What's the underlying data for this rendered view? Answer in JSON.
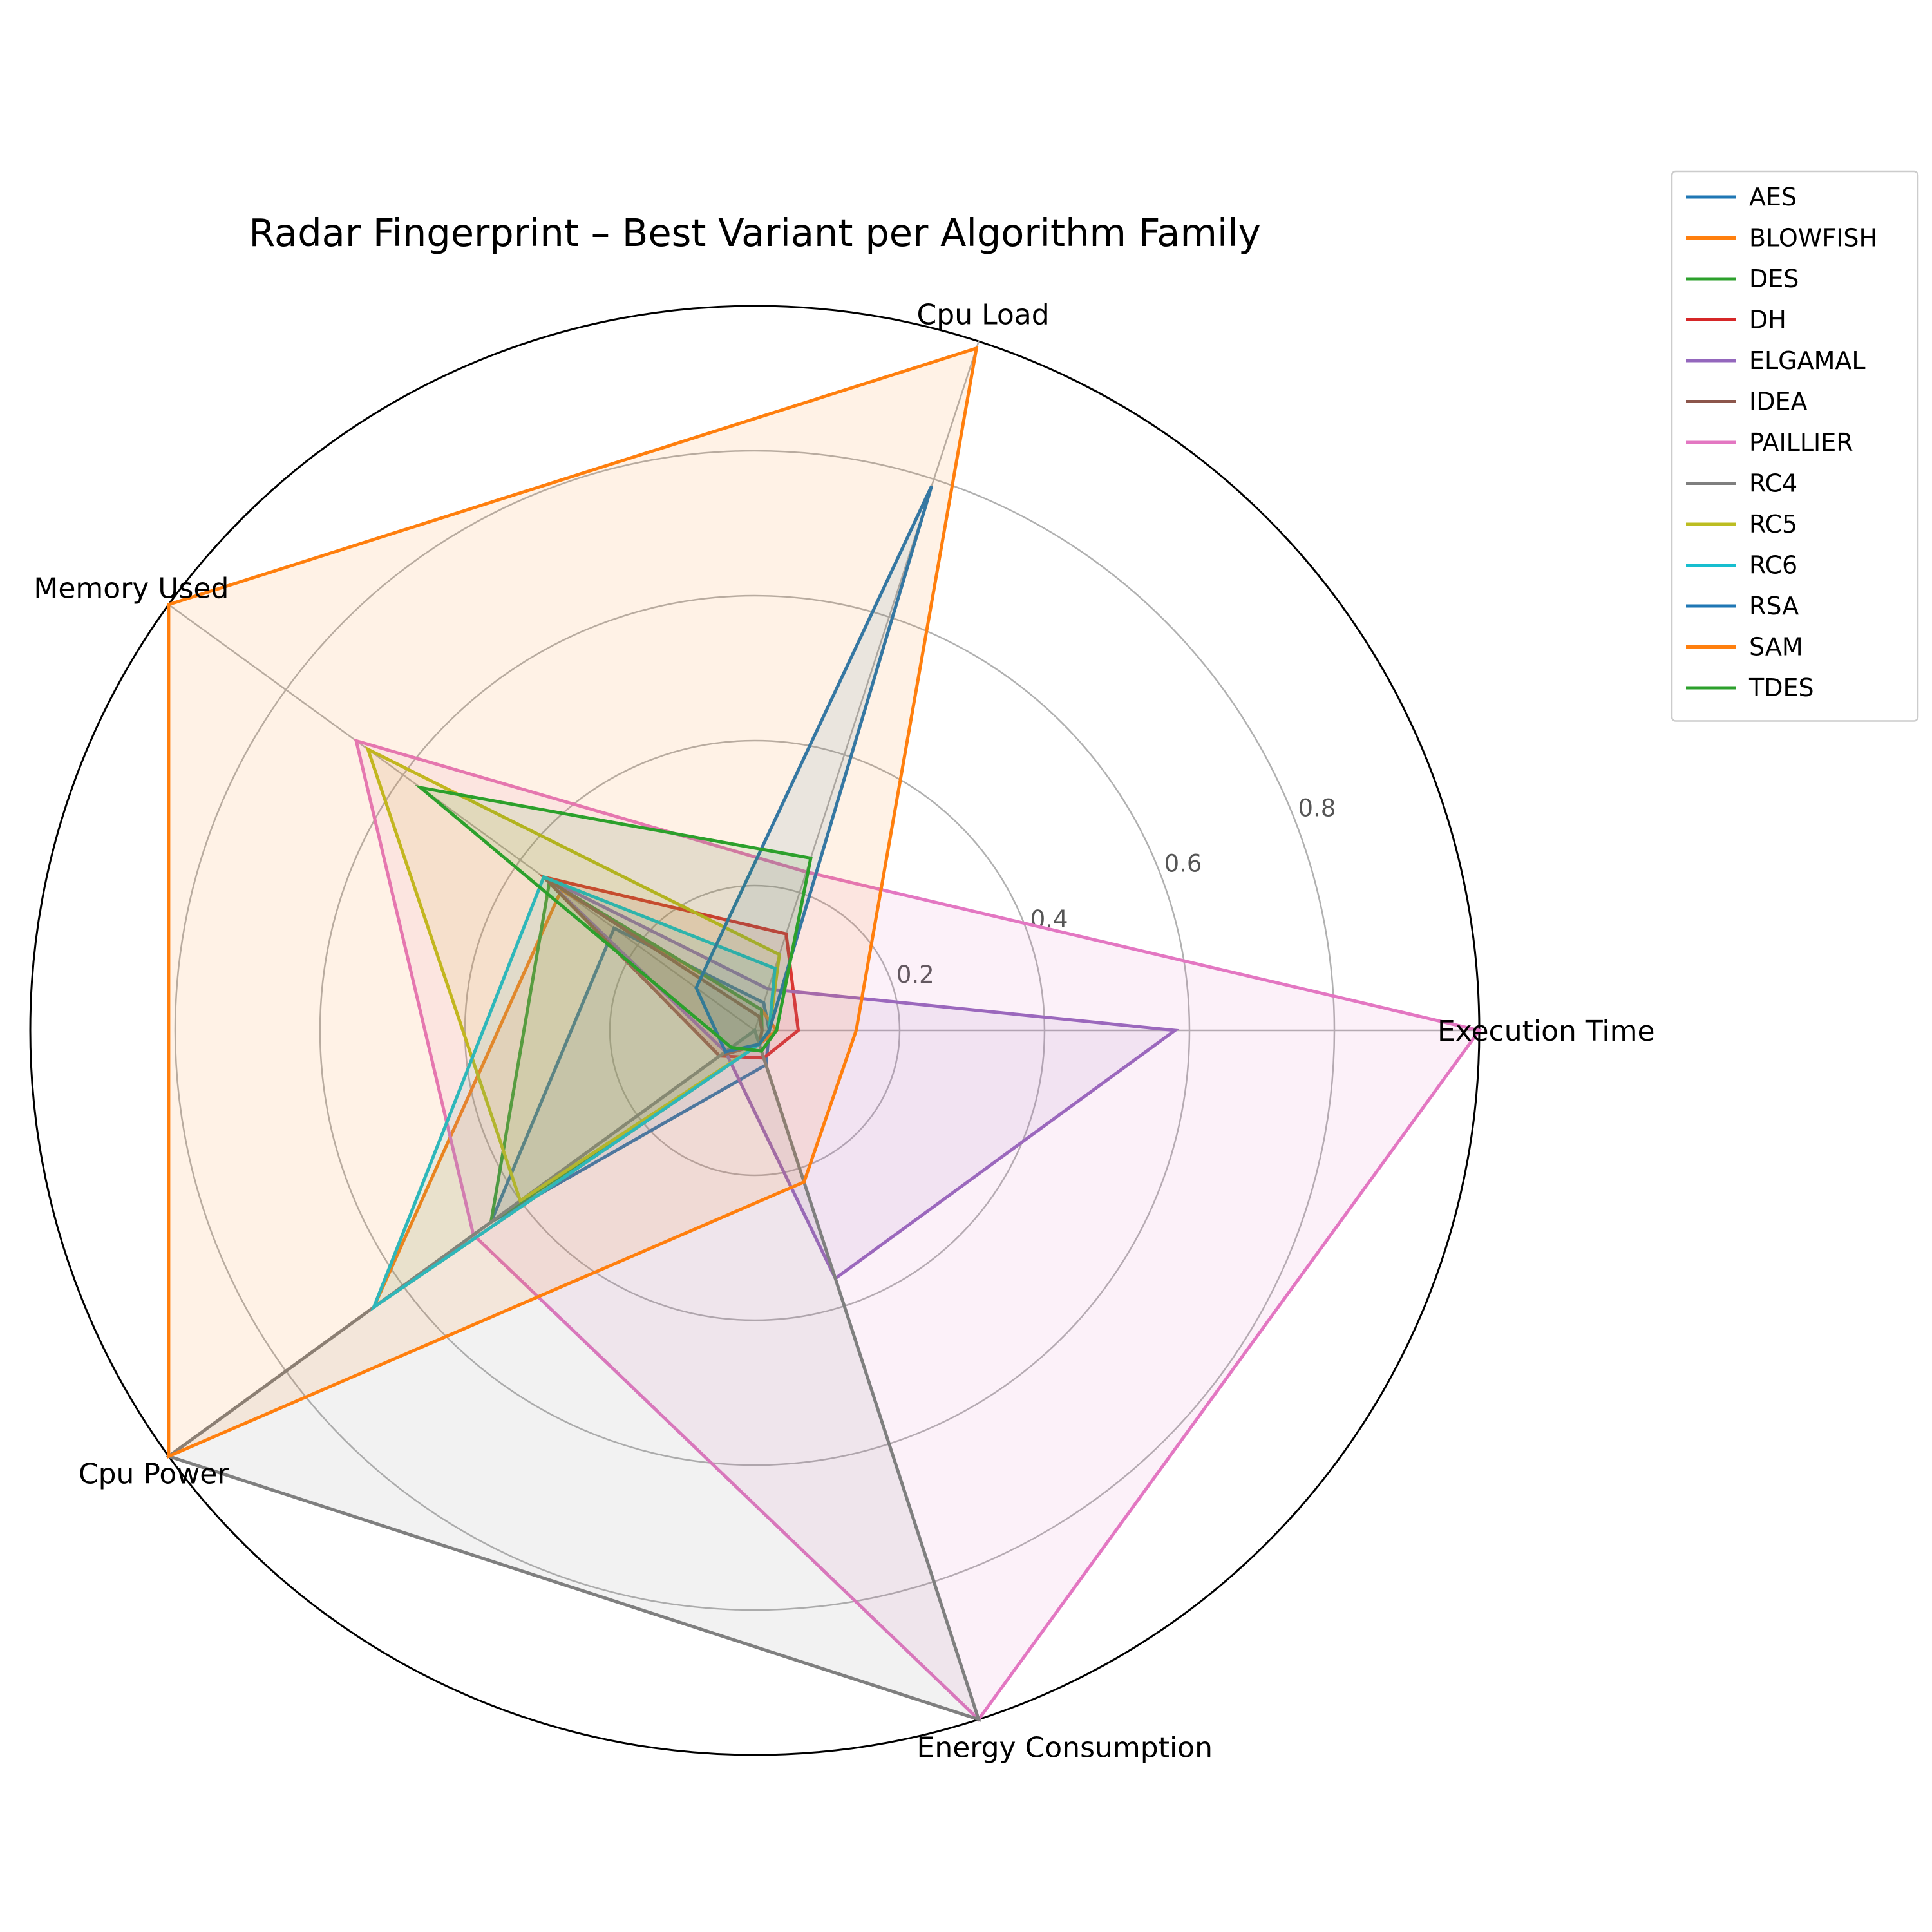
{
  "chart_data": {
    "type": "radar",
    "title": "Radar Fingerprint – Best Variant per Algorithm Family",
    "axes": [
      "Execution Time",
      "Cpu Load",
      "Memory Used",
      "Cpu Power",
      "Energy Consumption"
    ],
    "rlim": [
      0,
      1
    ],
    "rticks": [
      0.2,
      0.4,
      0.6,
      0.8,
      1.0
    ],
    "rtick_labels": [
      "0.2",
      "0.4",
      "0.6",
      "0.8",
      ""
    ],
    "grid": true,
    "legend_position": "upper right, outside plot",
    "series": [
      {
        "name": "AES",
        "color": "#1f77b4",
        "values": [
          0.02,
          0.04,
          0.24,
          0.45,
          0.05
        ]
      },
      {
        "name": "BLOWFISH",
        "color": "#ff7f0e",
        "values": [
          0.03,
          0.03,
          0.33,
          0.65,
          0.02
        ]
      },
      {
        "name": "DES",
        "color": "#2ca02c",
        "values": [
          0.01,
          0.03,
          0.35,
          0.45,
          0.02
        ]
      },
      {
        "name": "DH",
        "color": "#d62728",
        "values": [
          0.06,
          0.14,
          0.36,
          0.06,
          0.04
        ]
      },
      {
        "name": "ELGAMAL",
        "color": "#9467bd",
        "values": [
          0.58,
          0.06,
          0.36,
          0.05,
          0.36
        ]
      },
      {
        "name": "IDEA",
        "color": "#8c564b",
        "values": [
          0.01,
          0.02,
          0.36,
          0.06,
          0.02
        ]
      },
      {
        "name": "PAILLIER",
        "color": "#e377c2",
        "values": [
          1.0,
          0.23,
          0.68,
          0.48,
          1.0
        ]
      },
      {
        "name": "RC4",
        "color": "#7f7f7f",
        "values": [
          0.0,
          0.0,
          0.0,
          1.0,
          1.0
        ]
      },
      {
        "name": "RC5",
        "color": "#bcbd22",
        "values": [
          0.02,
          0.11,
          0.66,
          0.4,
          0.02
        ]
      },
      {
        "name": "RC6",
        "color": "#17becf",
        "values": [
          0.02,
          0.09,
          0.36,
          0.65,
          0.02
        ]
      },
      {
        "name": "RSA",
        "color": "#1f77b4",
        "values": [
          0.02,
          0.79,
          0.1,
          0.05,
          0.02
        ]
      },
      {
        "name": "SAM",
        "color": "#ff7f0e",
        "values": [
          0.14,
          0.99,
          1.0,
          1.0,
          0.22
        ]
      },
      {
        "name": "TDES",
        "color": "#2ca02c",
        "values": [
          0.03,
          0.25,
          0.57,
          0.04,
          0.03
        ]
      }
    ]
  }
}
